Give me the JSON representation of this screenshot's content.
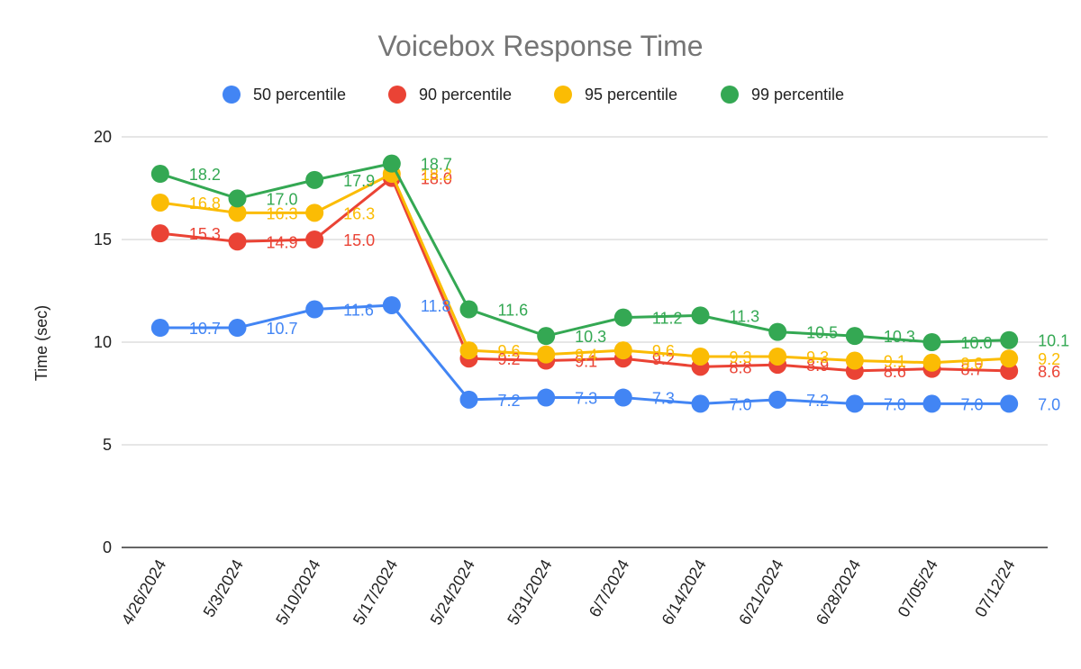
{
  "chart_data": {
    "type": "line",
    "title": "Voicebox Response Time",
    "xlabel": "",
    "ylabel": "Time (sec)",
    "ylim": [
      0,
      20
    ],
    "yticks": [
      0,
      5,
      10,
      15,
      20
    ],
    "grid": true,
    "legend_position": "top",
    "categories": [
      "4/26/2024",
      "5/3/2024",
      "5/10/2024",
      "5/17/2024",
      "5/24/2024",
      "5/31/2024",
      "6/7/2024",
      "6/14/2024",
      "6/21/2024",
      "6/28/2024",
      "07/05/24",
      "07/12/24"
    ],
    "series": [
      {
        "name": "50 percentile",
        "color": "#4285f4",
        "values": [
          10.7,
          10.7,
          11.6,
          11.8,
          7.2,
          7.3,
          7.3,
          7.0,
          7.2,
          7.0,
          7.0,
          7.0
        ]
      },
      {
        "name": "90 percentile",
        "color": "#ea4335",
        "values": [
          15.3,
          14.9,
          15.0,
          18.0,
          9.2,
          9.1,
          9.2,
          8.8,
          8.9,
          8.6,
          8.7,
          8.6
        ]
      },
      {
        "name": "95 percentile",
        "color": "#fbbc04",
        "values": [
          16.8,
          16.3,
          16.3,
          18.2,
          9.6,
          9.4,
          9.6,
          9.3,
          9.3,
          9.1,
          9.0,
          9.2
        ]
      },
      {
        "name": "99 percentile",
        "color": "#34a853",
        "values": [
          18.2,
          17.0,
          17.9,
          18.7,
          11.6,
          10.3,
          11.2,
          11.3,
          10.5,
          10.3,
          10.0,
          10.1
        ]
      }
    ]
  }
}
